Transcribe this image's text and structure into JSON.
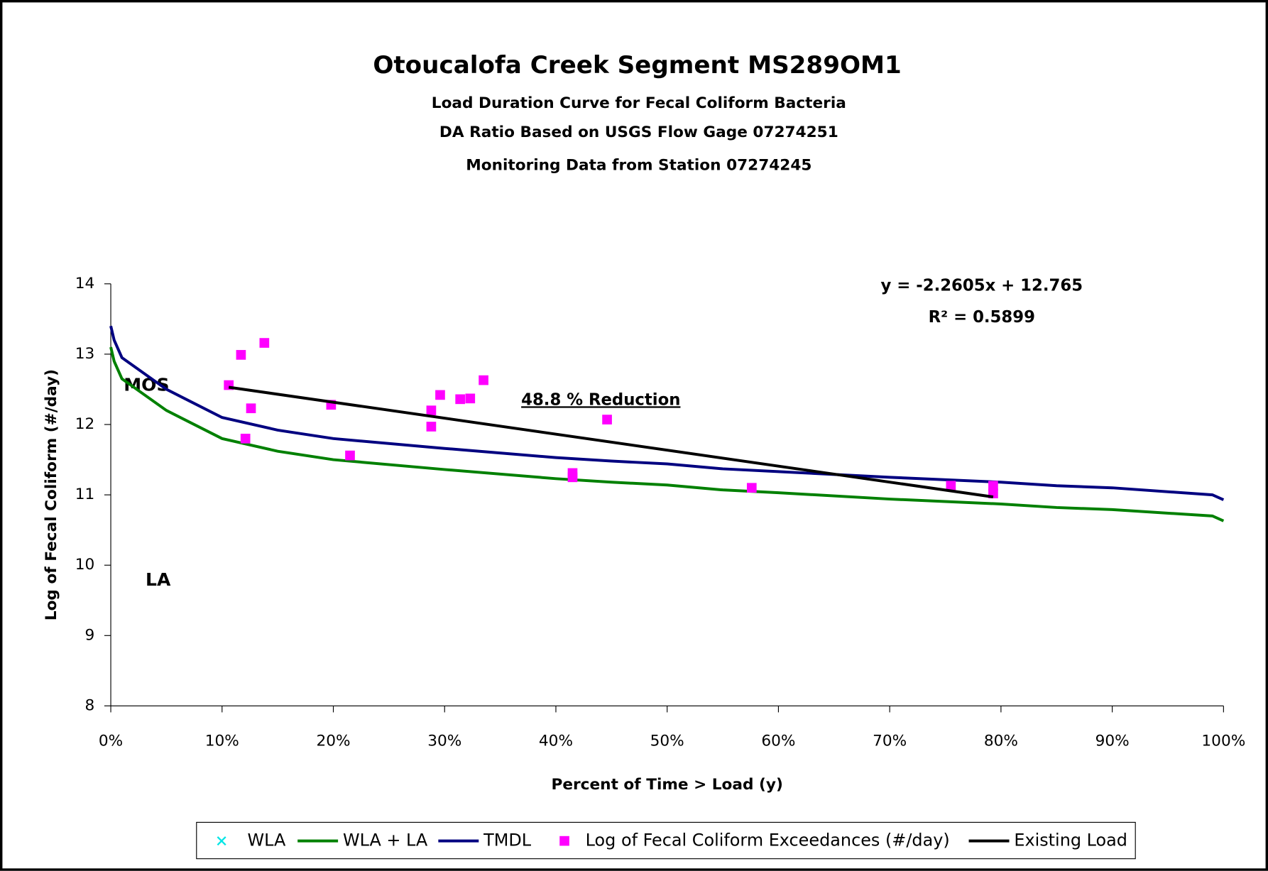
{
  "chart_data": {
    "type": "line",
    "title": "Otoucalofa Creek Segment MS289OM1",
    "subtitles": [
      "Load Duration Curve for Fecal Coliform Bacteria",
      "DA Ratio Based on USGS Flow Gage 07274251",
      "Monitoring Data from Station 07274245"
    ],
    "x_label": "Percent of Time > Load (y)",
    "y_label": "Log of Fecal Coliform (#/day)",
    "xlim": [
      0,
      100
    ],
    "ylim": [
      8,
      14
    ],
    "xticks": [
      {
        "value": 0,
        "label": "0%"
      },
      {
        "value": 10,
        "label": "10%"
      },
      {
        "value": 20,
        "label": "20%"
      },
      {
        "value": 30,
        "label": "30%"
      },
      {
        "value": 40,
        "label": "40%"
      },
      {
        "value": 50,
        "label": "50%"
      },
      {
        "value": 60,
        "label": "60%"
      },
      {
        "value": 70,
        "label": "70%"
      },
      {
        "value": 80,
        "label": "80%"
      },
      {
        "value": 90,
        "label": "90%"
      },
      {
        "value": 100,
        "label": "100%"
      }
    ],
    "yticks": [
      8,
      9,
      10,
      11,
      12,
      13,
      14
    ],
    "annotations": [
      "y = -2.2605x + 12.765",
      "R² = 0.5899",
      "48.8 % Reduction",
      "MOS",
      "LA"
    ],
    "series": [
      {
        "name": "WLA",
        "color": "#00e5e5",
        "mark": "x",
        "x": [],
        "values": []
      },
      {
        "name": "WLA + LA",
        "color": "#008000",
        "mark": "line",
        "x": [
          0,
          0.3,
          1,
          5,
          10,
          15,
          20,
          30,
          40,
          45,
          50,
          55,
          60,
          70,
          80,
          85,
          90,
          99,
          100
        ],
        "values": [
          13.1,
          12.9,
          12.65,
          12.2,
          11.8,
          11.62,
          11.5,
          11.36,
          11.23,
          11.18,
          11.14,
          11.07,
          11.03,
          10.94,
          10.87,
          10.82,
          10.79,
          10.7,
          10.63
        ]
      },
      {
        "name": "TMDL",
        "color": "#000080",
        "mark": "line",
        "x": [
          0,
          0.3,
          1,
          5,
          10,
          15,
          20,
          30,
          40,
          45,
          50,
          55,
          60,
          70,
          80,
          85,
          90,
          99,
          100
        ],
        "values": [
          13.4,
          13.2,
          12.95,
          12.5,
          12.1,
          11.92,
          11.8,
          11.66,
          11.53,
          11.48,
          11.44,
          11.37,
          11.33,
          11.25,
          11.18,
          11.13,
          11.1,
          11.0,
          10.93
        ]
      },
      {
        "name": "Log of Fecal Coliform Exceedances (#/day)",
        "color": "#ff00ff",
        "mark": "square",
        "x": [
          10.6,
          11.7,
          13.8,
          12.6,
          12.1,
          19.8,
          21.5,
          28.8,
          28.8,
          29.6,
          31.4,
          32.3,
          33.5,
          41.5,
          41.5,
          44.6,
          57.6,
          75.5,
          79.3,
          79.3
        ],
        "values": [
          12.56,
          12.99,
          13.16,
          12.23,
          11.8,
          12.28,
          11.56,
          12.2,
          11.97,
          12.42,
          12.36,
          12.37,
          12.63,
          11.31,
          11.25,
          12.07,
          11.1,
          11.13,
          11.13,
          11.02
        ]
      },
      {
        "name": "Existing Load",
        "color": "#000000",
        "mark": "line",
        "x": [
          10.6,
          79.3
        ],
        "values": [
          12.53,
          10.97
        ]
      }
    ]
  }
}
